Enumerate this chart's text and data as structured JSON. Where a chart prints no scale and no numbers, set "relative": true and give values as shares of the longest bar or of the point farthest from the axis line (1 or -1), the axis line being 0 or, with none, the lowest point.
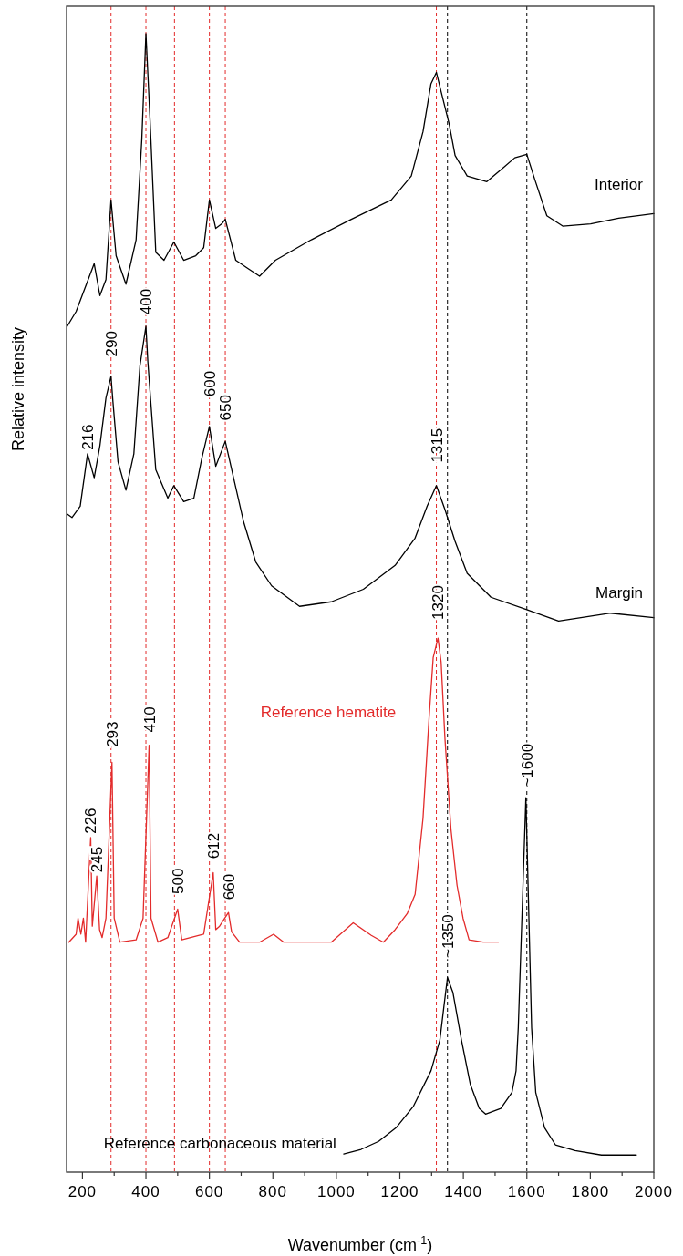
{
  "chart_data": {
    "type": "line",
    "relative": true,
    "xlabel": "Wavenumber (cm$^{-1}$)",
    "ylabel": "Relative intensity",
    "xlim": [
      150,
      2000
    ],
    "xticks": [
      200,
      {
        "value": 300,
        "label": null
      },
      400,
      {
        "value": 500,
        "label": null
      },
      600,
      {
        "value": 700,
        "label": null
      },
      800,
      {
        "value": 900,
        "label": null
      },
      1000,
      {
        "value": 1100,
        "label": null
      },
      1200,
      {
        "value": 1300,
        "label": null
      },
      1400,
      {
        "value": 1500,
        "label": null
      },
      1600,
      {
        "value": 1700,
        "label": null
      },
      1800,
      {
        "value": 1900,
        "label": null
      },
      2000
    ],
    "marker": "none",
    "line_style": "solid",
    "series": [
      {
        "name": "Interior",
        "color": "#000000",
        "x": [
          152,
          180,
          218,
          237,
          255,
          274,
          290,
          306,
          337,
          369,
          387,
          400,
          413,
          431,
          457,
          488,
          519,
          557,
          582,
          600,
          620,
          639,
          650,
          683,
          720,
          758,
          808,
          921,
          1047,
          1173,
          1236,
          1273,
          1298,
          1315,
          1330,
          1355,
          1374,
          1412,
          1474,
          1525,
          1562,
          1600,
          1625,
          1663,
          1713,
          1801,
          1889,
          2000
        ],
        "values": [
          0.743,
          0.756,
          0.784,
          0.798,
          0.77,
          0.784,
          0.854,
          0.805,
          0.78,
          0.819,
          0.907,
          1.0,
          0.924,
          0.808,
          0.801,
          0.817,
          0.801,
          0.805,
          0.812,
          0.854,
          0.829,
          0.833,
          0.837,
          0.801,
          0.794,
          0.787,
          0.801,
          0.819,
          0.837,
          0.854,
          0.875,
          0.914,
          0.956,
          0.966,
          0.949,
          0.921,
          0.893,
          0.875,
          0.87,
          0.882,
          0.891,
          0.894,
          0.872,
          0.84,
          0.831,
          0.833,
          0.838,
          0.842
        ]
      },
      {
        "name": "Margin",
        "color": "#000000",
        "x": [
          152,
          167,
          193,
          216,
          237,
          255,
          274,
          290,
          296,
          312,
          337,
          362,
          381,
          400,
          406,
          431,
          469,
          488,
          519,
          551,
          576,
          600,
          620,
          650,
          676,
          708,
          746,
          796,
          884,
          984,
          1085,
          1185,
          1248,
          1286,
          1315,
          1342,
          1374,
          1412,
          1487,
          1600,
          1700,
          1864,
          2000
        ],
        "values": [
          0.578,
          0.575,
          0.585,
          0.631,
          0.61,
          0.638,
          0.68,
          0.699,
          0.677,
          0.624,
          0.599,
          0.631,
          0.708,
          0.743,
          0.712,
          0.617,
          0.592,
          0.603,
          0.589,
          0.592,
          0.627,
          0.655,
          0.62,
          0.642,
          0.61,
          0.571,
          0.536,
          0.515,
          0.497,
          0.501,
          0.512,
          0.533,
          0.557,
          0.585,
          0.603,
          0.582,
          0.554,
          0.526,
          0.505,
          0.494,
          0.484,
          0.491,
          0.487
        ]
      },
      {
        "name": "Reference hematite",
        "color": "#e32b2b",
        "x": [
          157,
          180,
          186,
          195,
          203,
          210,
          226,
          231,
          245,
          254,
          262,
          274,
          293,
          300,
          318,
          369,
          391,
          410,
          416,
          438,
          469,
          500,
          513,
          582,
          612,
          620,
          632,
          660,
          670,
          695,
          758,
          802,
          834,
          921,
          984,
          1053,
          1110,
          1148,
          1185,
          1223,
          1248,
          1273,
          1292,
          1305,
          1320,
          1330,
          1342,
          1361,
          1380,
          1399,
          1418,
          1462,
          1510
        ],
        "values": [
          0.202,
          0.209,
          0.223,
          0.209,
          0.223,
          0.202,
          0.294,
          0.216,
          0.26,
          0.213,
          0.206,
          0.223,
          0.36,
          0.223,
          0.202,
          0.204,
          0.223,
          0.375,
          0.223,
          0.202,
          0.206,
          0.231,
          0.204,
          0.209,
          0.263,
          0.213,
          0.216,
          0.228,
          0.211,
          0.202,
          0.202,
          0.209,
          0.202,
          0.202,
          0.202,
          0.219,
          0.208,
          0.202,
          0.213,
          0.227,
          0.244,
          0.311,
          0.399,
          0.452,
          0.469,
          0.448,
          0.381,
          0.301,
          0.252,
          0.223,
          0.204,
          0.202,
          0.202
        ]
      },
      {
        "name": "Reference carbonaceous material",
        "color": "#000000",
        "x": [
          1023,
          1078,
          1133,
          1188,
          1243,
          1298,
          1326,
          1339,
          1350,
          1367,
          1394,
          1422,
          1450,
          1470,
          1518,
          1553,
          1566,
          1573,
          1597,
          1615,
          1628,
          1656,
          1690,
          1752,
          1835,
          1945
        ],
        "values": [
          0.016,
          0.02,
          0.027,
          0.039,
          0.058,
          0.089,
          0.116,
          0.146,
          0.171,
          0.158,
          0.116,
          0.077,
          0.056,
          0.051,
          0.056,
          0.07,
          0.089,
          0.127,
          0.329,
          0.127,
          0.07,
          0.039,
          0.024,
          0.019,
          0.015,
          0.015
        ]
      }
    ],
    "ref_lines": [
      {
        "axis": "x",
        "value": 290,
        "color": "#e32b2b",
        "line_style": "dashed"
      },
      {
        "axis": "x",
        "value": 400,
        "color": "#e32b2b",
        "line_style": "dashed"
      },
      {
        "axis": "x",
        "value": 490,
        "color": "#e32b2b",
        "line_style": "dashed"
      },
      {
        "axis": "x",
        "value": 600,
        "color": "#e32b2b",
        "line_style": "dashed"
      },
      {
        "axis": "x",
        "value": 650,
        "color": "#e32b2b",
        "line_style": "dashed"
      },
      {
        "axis": "x",
        "value": 1315,
        "color": "#e32b2b",
        "line_style": "dashed"
      },
      {
        "axis": "x",
        "value": 1350,
        "color": "#000000",
        "line_style": "dashed"
      },
      {
        "axis": "x",
        "value": 1600,
        "color": "#000000",
        "line_style": "dashed"
      }
    ],
    "annotations": [
      {
        "text": "216",
        "x": 216,
        "y": 0.631
      },
      {
        "text": "290",
        "x": 290,
        "y": 0.713
      },
      {
        "text": "400",
        "x": 400,
        "y": 0.75
      },
      {
        "text": "600",
        "x": 600,
        "y": 0.678
      },
      {
        "text": "650",
        "x": 650,
        "y": 0.657
      },
      {
        "text": "1315",
        "x": 1315,
        "y": 0.62
      },
      {
        "text": "1320",
        "x": 1320,
        "y": 0.482
      },
      {
        "text": "226",
        "x": 226,
        "y": 0.294
      },
      {
        "text": "245",
        "x": 245,
        "y": 0.26
      },
      {
        "text": "293",
        "x": 293,
        "y": 0.37
      },
      {
        "text": "410",
        "x": 410,
        "y": 0.383
      },
      {
        "text": "500",
        "x": 500,
        "y": 0.241
      },
      {
        "text": "612",
        "x": 612,
        "y": 0.272
      },
      {
        "text": "660",
        "x": 660,
        "y": 0.236
      },
      {
        "text": "~1350",
        "x": 1350,
        "y": 0.185
      },
      {
        "text": "~1600",
        "x": 1600,
        "y": 0.335
      }
    ]
  }
}
